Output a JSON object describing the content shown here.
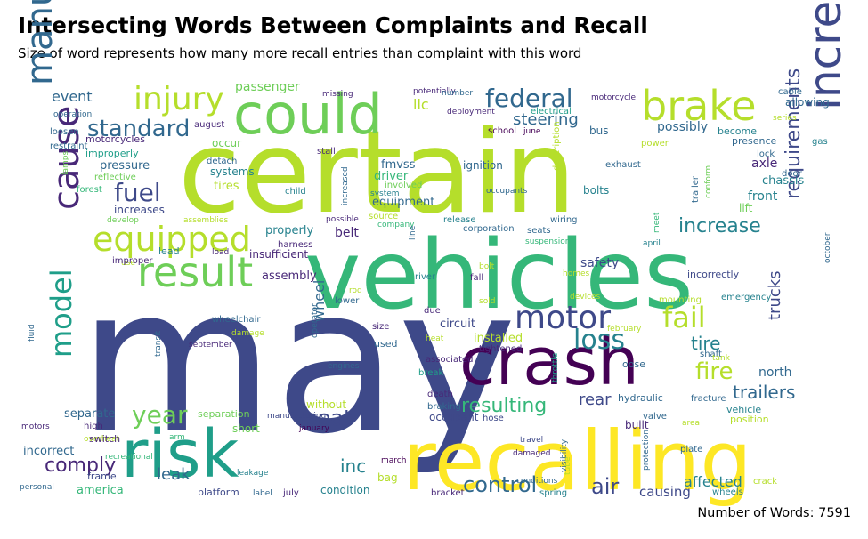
{
  "header": {
    "title": "Intersecting Words Between Complaints and Recall",
    "subtitle": "Size of word represents how many more recall entries than complaint with this word"
  },
  "footer": {
    "word_count": "Number of Words: 7591"
  },
  "palette": [
    "#440154",
    "#482878",
    "#3e4989",
    "#31688e",
    "#26828e",
    "#1f9e89",
    "#35b779",
    "#6ece58",
    "#b5de2b",
    "#fde725"
  ],
  "words": [
    {
      "text": "may",
      "size": 226,
      "color": "#3e4989"
    },
    {
      "text": "certain",
      "size": 128,
      "color": "#b5de2b"
    },
    {
      "text": "vehicles",
      "size": 107,
      "color": "#35b779"
    },
    {
      "text": "recalling",
      "size": 92,
      "color": "#fde725"
    },
    {
      "text": "crash",
      "size": 74,
      "color": "#440154"
    },
    {
      "text": "risk",
      "size": 74,
      "color": "#1f9e89"
    },
    {
      "text": "could",
      "size": 62,
      "color": "#6ece58"
    },
    {
      "text": "increasing",
      "size": 50,
      "color": "#3e4989"
    },
    {
      "text": "brake",
      "size": 46,
      "color": "#b5de2b"
    },
    {
      "text": "result",
      "size": 46,
      "color": "#6ece58"
    },
    {
      "text": "manufactured",
      "size": 40,
      "color": "#31688e"
    },
    {
      "text": "cause",
      "size": 40,
      "color": "#482878"
    },
    {
      "text": "equipped",
      "size": 38,
      "color": "#b5de2b"
    },
    {
      "text": "injury",
      "size": 36,
      "color": "#b5de2b"
    },
    {
      "text": "motor",
      "size": 36,
      "color": "#3e4989"
    },
    {
      "text": "fail",
      "size": 32,
      "color": "#b5de2b"
    },
    {
      "text": "model",
      "size": 32,
      "color": "#1f9e89"
    },
    {
      "text": "loss",
      "size": 30,
      "color": "#26828e"
    },
    {
      "text": "year",
      "size": 28,
      "color": "#6ece58"
    },
    {
      "text": "federal",
      "size": 28,
      "color": "#31688e"
    },
    {
      "text": "fuel",
      "size": 28,
      "color": "#3e4989"
    },
    {
      "text": "standard",
      "size": 26,
      "color": "#31688e"
    },
    {
      "text": "fire",
      "size": 26,
      "color": "#b5de2b"
    },
    {
      "text": "control",
      "size": 24,
      "color": "#31688e"
    },
    {
      "text": "air",
      "size": 24,
      "color": "#3e4989"
    },
    {
      "text": "comply",
      "size": 22,
      "color": "#482878"
    },
    {
      "text": "seat",
      "size": 24,
      "color": "#3e4989"
    },
    {
      "text": "resulting",
      "size": 22,
      "color": "#35b779"
    },
    {
      "text": "requirements",
      "size": 22,
      "color": "#3e4989"
    },
    {
      "text": "increase",
      "size": 22,
      "color": "#26828e"
    },
    {
      "text": "trailers",
      "size": 20,
      "color": "#31688e"
    },
    {
      "text": "leak",
      "size": 18,
      "color": "#31688e"
    },
    {
      "text": "inc",
      "size": 20,
      "color": "#26828e"
    },
    {
      "text": "tire",
      "size": 20,
      "color": "#26828e"
    },
    {
      "text": "trucks",
      "size": 18,
      "color": "#3e4989"
    },
    {
      "text": "steering",
      "size": 18,
      "color": "#31688e"
    },
    {
      "text": "safety",
      "size": 14,
      "color": "#3e4989"
    },
    {
      "text": "event",
      "size": 16,
      "color": "#31688e"
    },
    {
      "text": "wheel",
      "size": 16,
      "color": "#31688e"
    },
    {
      "text": "affected",
      "size": 16,
      "color": "#26828e"
    },
    {
      "text": "causing",
      "size": 15,
      "color": "#3e4989"
    },
    {
      "text": "rear",
      "size": 18,
      "color": "#3e4989"
    },
    {
      "text": "north",
      "size": 14,
      "color": "#31688e"
    },
    {
      "text": "passenger",
      "size": 14,
      "color": "#6ece58"
    },
    {
      "text": "llc",
      "size": 16,
      "color": "#b5de2b"
    },
    {
      "text": "possibly",
      "size": 14,
      "color": "#31688e"
    },
    {
      "text": "pressure",
      "size": 13,
      "color": "#31688e"
    },
    {
      "text": "systems",
      "size": 12,
      "color": "#26828e"
    },
    {
      "text": "tires",
      "size": 13,
      "color": "#b5de2b"
    },
    {
      "text": "fmvss",
      "size": 13,
      "color": "#31688e"
    },
    {
      "text": "driver",
      "size": 13,
      "color": "#35b779"
    },
    {
      "text": "equipment",
      "size": 13,
      "color": "#31688e"
    },
    {
      "text": "ignition",
      "size": 12,
      "color": "#31688e"
    },
    {
      "text": "axle",
      "size": 14,
      "color": "#482878"
    },
    {
      "text": "chassis",
      "size": 13,
      "color": "#26828e"
    },
    {
      "text": "front",
      "size": 14,
      "color": "#26828e"
    },
    {
      "text": "bolts",
      "size": 12,
      "color": "#26828e"
    },
    {
      "text": "properly",
      "size": 13,
      "color": "#26828e"
    },
    {
      "text": "belt",
      "size": 14,
      "color": "#482878"
    },
    {
      "text": "assembly",
      "size": 13,
      "color": "#482878"
    },
    {
      "text": "insufficient",
      "size": 12,
      "color": "#482878"
    },
    {
      "text": "increases",
      "size": 12,
      "color": "#3e4989"
    },
    {
      "text": "circuit",
      "size": 13,
      "color": "#3e4989"
    },
    {
      "text": "installed",
      "size": 13,
      "color": "#b5de2b"
    },
    {
      "text": "separate",
      "size": 13,
      "color": "#31688e"
    },
    {
      "text": "incorrect",
      "size": 13,
      "color": "#31688e"
    },
    {
      "text": "america",
      "size": 13,
      "color": "#35b779"
    },
    {
      "text": "condition",
      "size": 12,
      "color": "#26828e"
    },
    {
      "text": "platform",
      "size": 11,
      "color": "#3e4989"
    },
    {
      "text": "separation",
      "size": 11,
      "color": "#6ece58"
    },
    {
      "text": "short",
      "size": 12,
      "color": "#6ece58"
    },
    {
      "text": "occupant",
      "size": 12,
      "color": "#3e4989"
    },
    {
      "text": "hydraulic",
      "size": 11,
      "color": "#31688e"
    },
    {
      "text": "fracture",
      "size": 10,
      "color": "#31688e"
    },
    {
      "text": "vehicle",
      "size": 11,
      "color": "#26828e"
    },
    {
      "text": "position",
      "size": 11,
      "color": "#b5de2b"
    },
    {
      "text": "without",
      "size": 12,
      "color": "#b5de2b"
    },
    {
      "text": "loose",
      "size": 11,
      "color": "#31688e"
    },
    {
      "text": "incorrectly",
      "size": 11,
      "color": "#3e4989"
    },
    {
      "text": "emergency",
      "size": 10,
      "color": "#26828e"
    },
    {
      "text": "motorcycles",
      "size": 11,
      "color": "#482878"
    },
    {
      "text": "improperly",
      "size": 11,
      "color": "#1f9e89"
    },
    {
      "text": "reflective",
      "size": 10,
      "color": "#6ece58"
    },
    {
      "text": "forest",
      "size": 10,
      "color": "#35b779"
    },
    {
      "text": "restraint",
      "size": 10,
      "color": "#31688e"
    },
    {
      "text": "loosen",
      "size": 10,
      "color": "#31688e"
    },
    {
      "text": "operation",
      "size": 9,
      "color": "#31688e"
    },
    {
      "text": "august",
      "size": 10,
      "color": "#482878"
    },
    {
      "text": "deployment",
      "size": 9,
      "color": "#482878"
    },
    {
      "text": "electrical",
      "size": 10,
      "color": "#1f9e89"
    },
    {
      "text": "motorcycle",
      "size": 9,
      "color": "#482878"
    },
    {
      "text": "potentially",
      "size": 9,
      "color": "#482878"
    },
    {
      "text": "cable",
      "size": 10,
      "color": "#31688e"
    },
    {
      "text": "allowing",
      "size": 12,
      "color": "#31688e"
    },
    {
      "text": "series",
      "size": 9,
      "color": "#b5de2b"
    },
    {
      "text": "presence",
      "size": 11,
      "color": "#31688e"
    },
    {
      "text": "become",
      "size": 11,
      "color": "#26828e"
    },
    {
      "text": "school",
      "size": 10,
      "color": "#440154"
    },
    {
      "text": "june",
      "size": 9,
      "color": "#440154"
    },
    {
      "text": "bus",
      "size": 12,
      "color": "#31688e"
    },
    {
      "text": "power",
      "size": 10,
      "color": "#b5de2b"
    },
    {
      "text": "gas",
      "size": 10,
      "color": "#26828e"
    },
    {
      "text": "lock",
      "size": 10,
      "color": "#31688e"
    },
    {
      "text": "door",
      "size": 10,
      "color": "#31688e"
    },
    {
      "text": "lift",
      "size": 12,
      "color": "#6ece58"
    },
    {
      "text": "exhaust",
      "size": 10,
      "color": "#31688e"
    },
    {
      "text": "detach",
      "size": 10,
      "color": "#31688e"
    },
    {
      "text": "occur",
      "size": 12,
      "color": "#6ece58"
    },
    {
      "text": "stall",
      "size": 10,
      "color": "#482878"
    },
    {
      "text": "child",
      "size": 10,
      "color": "#26828e"
    },
    {
      "text": "system",
      "size": 9,
      "color": "#26828e"
    },
    {
      "text": "involved",
      "size": 10,
      "color": "#6ece58"
    },
    {
      "text": "source",
      "size": 10,
      "color": "#b5de2b"
    },
    {
      "text": "assemblies",
      "size": 9,
      "color": "#b5de2b"
    },
    {
      "text": "develop",
      "size": 9,
      "color": "#6ece58"
    },
    {
      "text": "possible",
      "size": 9,
      "color": "#482878"
    },
    {
      "text": "company",
      "size": 9,
      "color": "#35b779"
    },
    {
      "text": "release",
      "size": 10,
      "color": "#26828e"
    },
    {
      "text": "corporation",
      "size": 10,
      "color": "#31688e"
    },
    {
      "text": "wiring",
      "size": 10,
      "color": "#31688e"
    },
    {
      "text": "seats",
      "size": 10,
      "color": "#31688e"
    },
    {
      "text": "suspension",
      "size": 9,
      "color": "#35b779"
    },
    {
      "text": "april",
      "size": 9,
      "color": "#26828e"
    },
    {
      "text": "lead",
      "size": 11,
      "color": "#26828e"
    },
    {
      "text": "use",
      "size": 9,
      "color": "#b5de2b"
    },
    {
      "text": "improper",
      "size": 10,
      "color": "#482878"
    },
    {
      "text": "load",
      "size": 9,
      "color": "#482878"
    },
    {
      "text": "harness",
      "size": 10,
      "color": "#482878"
    },
    {
      "text": "bolt",
      "size": 9,
      "color": "#b5de2b"
    },
    {
      "text": "homes",
      "size": 9,
      "color": "#b5de2b"
    },
    {
      "text": "river",
      "size": 10,
      "color": "#26828e"
    },
    {
      "text": "rod",
      "size": 9,
      "color": "#b5de2b"
    },
    {
      "text": "lower",
      "size": 10,
      "color": "#31688e"
    },
    {
      "text": "sold",
      "size": 9,
      "color": "#b5de2b"
    },
    {
      "text": "devices",
      "size": 9,
      "color": "#b5de2b"
    },
    {
      "text": "mounting",
      "size": 10,
      "color": "#b5de2b"
    },
    {
      "text": "february",
      "size": 9,
      "color": "#b5de2b"
    },
    {
      "text": "wheelchair",
      "size": 10,
      "color": "#31688e"
    },
    {
      "text": "damage",
      "size": 9,
      "color": "#b5de2b"
    },
    {
      "text": "september",
      "size": 9,
      "color": "#482878"
    },
    {
      "text": "size",
      "size": 10,
      "color": "#482878"
    },
    {
      "text": "used",
      "size": 11,
      "color": "#31688e"
    },
    {
      "text": "due",
      "size": 10,
      "color": "#482878"
    },
    {
      "text": "heat",
      "size": 9,
      "color": "#b5de2b"
    },
    {
      "text": "tightened",
      "size": 10,
      "color": "#482878"
    },
    {
      "text": "associated",
      "size": 10,
      "color": "#482878"
    },
    {
      "text": "break",
      "size": 10,
      "color": "#1f9e89"
    },
    {
      "text": "shaft",
      "size": 10,
      "color": "#31688e"
    },
    {
      "text": "tank",
      "size": 9,
      "color": "#b5de2b"
    },
    {
      "text": "engines",
      "size": 9,
      "color": "#31688e"
    },
    {
      "text": "death",
      "size": 10,
      "color": "#482878"
    },
    {
      "text": "braking",
      "size": 10,
      "color": "#31688e"
    },
    {
      "text": "hose",
      "size": 10,
      "color": "#3e4989"
    },
    {
      "text": "manufacturing",
      "size": 9,
      "color": "#3e4989"
    },
    {
      "text": "january",
      "size": 9,
      "color": "#440154"
    },
    {
      "text": "travel",
      "size": 9,
      "color": "#3e4989"
    },
    {
      "text": "damaged",
      "size": 9,
      "color": "#482878"
    },
    {
      "text": "built",
      "size": 12,
      "color": "#482878"
    },
    {
      "text": "valve",
      "size": 10,
      "color": "#31688e"
    },
    {
      "text": "area",
      "size": 9,
      "color": "#b5de2b"
    },
    {
      "text": "plate",
      "size": 10,
      "color": "#31688e"
    },
    {
      "text": "high",
      "size": 10,
      "color": "#482878"
    },
    {
      "text": "overheat",
      "size": 9,
      "color": "#b5de2b"
    },
    {
      "text": "switch",
      "size": 11,
      "color": "#482878"
    },
    {
      "text": "motors",
      "size": 9,
      "color": "#482878"
    },
    {
      "text": "arm",
      "size": 9,
      "color": "#35b779"
    },
    {
      "text": "recreational",
      "size": 9,
      "color": "#35b779"
    },
    {
      "text": "frame",
      "size": 11,
      "color": "#3e4989"
    },
    {
      "text": "personal",
      "size": 9,
      "color": "#31688e"
    },
    {
      "text": "leakage",
      "size": 9,
      "color": "#26828e"
    },
    {
      "text": "label",
      "size": 9,
      "color": "#31688e"
    },
    {
      "text": "july",
      "size": 10,
      "color": "#482878"
    },
    {
      "text": "march",
      "size": 9,
      "color": "#440154"
    },
    {
      "text": "bag",
      "size": 12,
      "color": "#b5de2b"
    },
    {
      "text": "bracket",
      "size": 10,
      "color": "#482878"
    },
    {
      "text": "conditions",
      "size": 9,
      "color": "#31688e"
    },
    {
      "text": "spring",
      "size": 10,
      "color": "#26828e"
    },
    {
      "text": "crack",
      "size": 10,
      "color": "#b5de2b"
    },
    {
      "text": "wheels",
      "size": 10,
      "color": "#26828e"
    },
    {
      "text": "protection",
      "size": 9,
      "color": "#31688e"
    },
    {
      "text": "missing",
      "size": 9,
      "color": "#482878"
    },
    {
      "text": "fall",
      "size": 10,
      "color": "#482878"
    },
    {
      "text": "number",
      "size": 9,
      "color": "#31688e"
    },
    {
      "text": "meet",
      "size": 9,
      "color": "#35b779"
    },
    {
      "text": "description",
      "size": 10,
      "color": "#b5de2b"
    },
    {
      "text": "trailer",
      "size": 10,
      "color": "#31688e"
    },
    {
      "text": "conform",
      "size": 9,
      "color": "#6ece58"
    },
    {
      "text": "october",
      "size": 9,
      "color": "#31688e"
    },
    {
      "text": "occupants",
      "size": 9,
      "color": "#31688e"
    },
    {
      "text": "line",
      "size": 9,
      "color": "#31688e"
    },
    {
      "text": "lamps",
      "size": 9,
      "color": "#6ece58"
    },
    {
      "text": "fluid",
      "size": 9,
      "color": "#31688e"
    },
    {
      "text": "transit",
      "size": 9,
      "color": "#31688e"
    },
    {
      "text": "operator",
      "size": 9,
      "color": "#31688e"
    },
    {
      "text": "throttle",
      "size": 9,
      "color": "#1f9e89"
    },
    {
      "text": "visibility",
      "size": 9,
      "color": "#31688e"
    },
    {
      "text": "tube",
      "size": 9,
      "color": "#b5de2b"
    },
    {
      "text": "increased",
      "size": 9,
      "color": "#31688e"
    },
    {
      "text": "weight",
      "size": 9,
      "color": "#31688e"
    }
  ]
}
